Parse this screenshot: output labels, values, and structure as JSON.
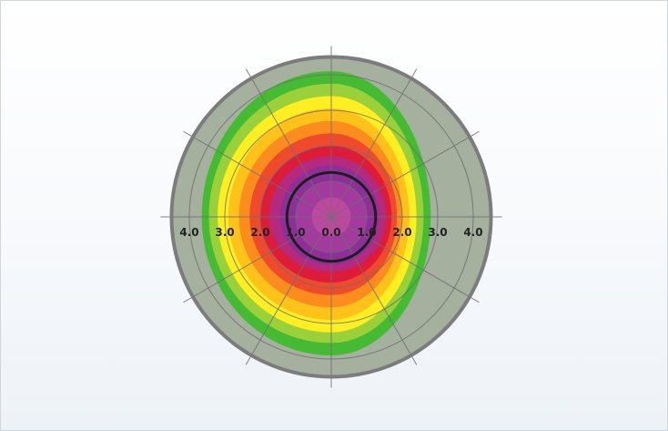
{
  "chart_data": {
    "type": "heatmap",
    "title": "",
    "xlabel": "",
    "ylabel": "",
    "coordinate_system": "polar",
    "radial_ticks": [
      "4.0",
      "3.0",
      "2.0",
      "1.0",
      "0.0",
      "1.0",
      "2.0",
      "3.0",
      "4.0"
    ],
    "radial_tick_values": [
      -4,
      -3,
      -2,
      -1,
      0,
      1,
      2,
      3,
      4
    ],
    "rings": [
      1,
      2,
      3,
      4
    ],
    "spokes_deg": [
      0,
      30,
      60,
      90,
      120,
      150,
      180,
      210,
      240,
      270,
      300,
      330
    ],
    "r_max": 4.5,
    "reference_circle_radius": 1.25,
    "background_color": "#a5b09e",
    "rim_color": "#7c7c7c",
    "zones": [
      {
        "color": "#44bb33",
        "r_left": 3.65,
        "r_right": 2.8,
        "r_top": 4.1,
        "r_bottom": 3.9
      },
      {
        "color": "#9ad03a",
        "r_left": 3.45,
        "r_right": 2.6,
        "r_top": 3.75,
        "r_bottom": 3.55
      },
      {
        "color": "#ffee22",
        "r_left": 3.2,
        "r_right": 2.4,
        "r_top": 3.4,
        "r_bottom": 3.25
      },
      {
        "color": "#ffc21a",
        "r_left": 2.9,
        "r_right": 2.2,
        "r_top": 3.05,
        "r_bottom": 2.9
      },
      {
        "color": "#fb8c1e",
        "r_left": 2.6,
        "r_right": 2.0,
        "r_top": 2.7,
        "r_bottom": 2.55
      },
      {
        "color": "#f04a2c",
        "r_left": 2.3,
        "r_right": 1.85,
        "r_top": 2.35,
        "r_bottom": 2.2
      },
      {
        "color": "#dd1c3a",
        "r_left": 2.0,
        "r_right": 1.7,
        "r_top": 2.0,
        "r_bottom": 1.85
      },
      {
        "color": "#b42a7e",
        "r_left": 1.75,
        "r_right": 1.55,
        "r_top": 1.7,
        "r_bottom": 1.55
      },
      {
        "color": "#8e2f98",
        "r_left": 1.45,
        "r_right": 1.35,
        "r_top": 1.45,
        "r_bottom": 1.35
      },
      {
        "color": "#a33a9e",
        "r_left": 1.0,
        "r_right": 1.0,
        "r_top": 1.0,
        "r_bottom": 1.0
      },
      {
        "color": "#c0479f",
        "r_left": 0.55,
        "r_right": 0.55,
        "r_top": 0.55,
        "r_bottom": 0.55
      }
    ]
  }
}
